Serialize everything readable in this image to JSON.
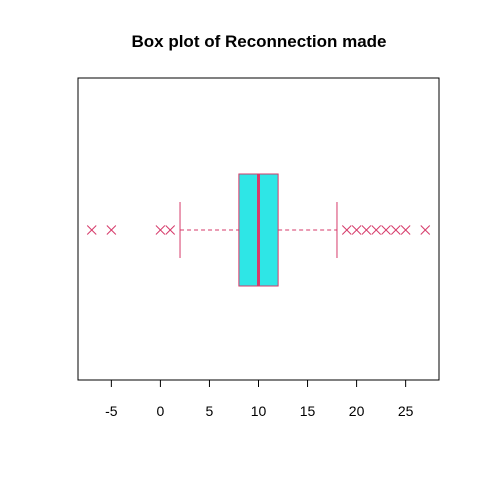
{
  "chart_data": {
    "type": "box",
    "title": "Box plot of Reconnection made",
    "xlabel": "",
    "ylabel": "",
    "orientation": "horizontal",
    "xlim": [
      -8.4,
      28.4
    ],
    "x_ticks": [
      -5,
      0,
      5,
      10,
      15,
      20,
      25
    ],
    "x_tick_labels": [
      "-5",
      "0",
      "5",
      "10",
      "15",
      "20",
      "25"
    ],
    "grid": false,
    "box": {
      "whisker_low": 2,
      "q1": 8,
      "median": 10,
      "q3": 12,
      "whisker_high": 18,
      "outliers": [
        -7,
        -5,
        0,
        1,
        19,
        20,
        21,
        22,
        23,
        24,
        25,
        27
      ]
    },
    "colors": {
      "box_fill": "#2ee6e6",
      "box_stroke": "#d63a6a",
      "median": "#d63a6a",
      "whisker": "#d63a6a",
      "outlier": "#d63a6a",
      "frame": "#000000"
    }
  }
}
